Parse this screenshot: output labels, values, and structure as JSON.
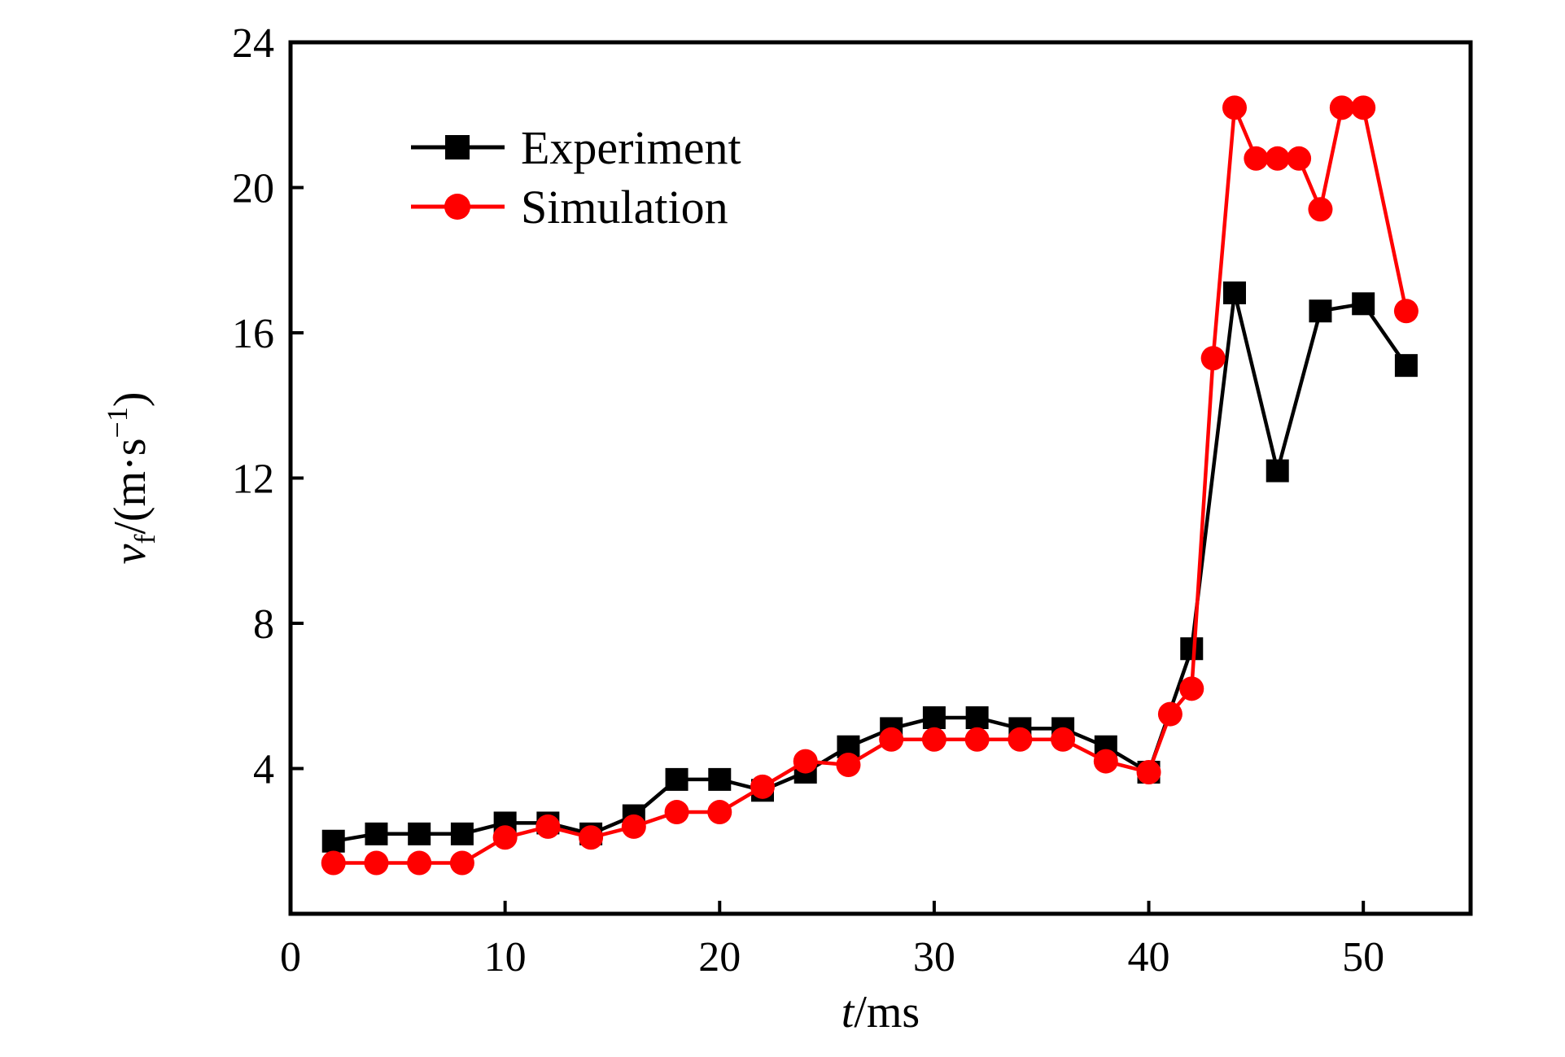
{
  "chart_data": {
    "type": "line",
    "title": "",
    "xlabel": "t/ms",
    "xlabel_parts": {
      "var": "t",
      "unit": "/ms"
    },
    "ylabel": "v_f/(m·s^-1)",
    "ylabel_parts": {
      "var": "v",
      "sub": "f",
      "unit_pre": "/(m·s",
      "sup": "−1",
      "unit_post": ")"
    },
    "xlim": [
      0,
      55
    ],
    "ylim": [
      0,
      24
    ],
    "xticks": [
      0,
      10,
      20,
      30,
      40,
      50
    ],
    "yticks": [
      4,
      8,
      12,
      16,
      20,
      24
    ],
    "grid": false,
    "legend_position": "top-left",
    "series": [
      {
        "name": "Experiment",
        "color": "#000000",
        "marker": "square",
        "x": [
          2,
          4,
          6,
          8,
          10,
          12,
          14,
          16,
          18,
          20,
          22,
          24,
          26,
          28,
          30,
          32,
          34,
          36,
          38,
          40,
          42,
          44,
          46,
          48,
          50,
          52
        ],
        "y": [
          2.0,
          2.2,
          2.2,
          2.2,
          2.5,
          2.5,
          2.2,
          2.7,
          3.7,
          3.7,
          3.4,
          3.9,
          4.6,
          5.1,
          5.4,
          5.4,
          5.1,
          5.1,
          4.6,
          3.9,
          7.3,
          17.1,
          12.2,
          16.6,
          16.8,
          15.1
        ]
      },
      {
        "name": "Simulation",
        "color": "#ff0000",
        "marker": "circle",
        "x": [
          2,
          4,
          6,
          8,
          10,
          12,
          14,
          16,
          18,
          20,
          22,
          24,
          26,
          28,
          30,
          32,
          34,
          36,
          38,
          40,
          41,
          42,
          43,
          44,
          45,
          46,
          47,
          48,
          49,
          50,
          52
        ],
        "y": [
          1.4,
          1.4,
          1.4,
          1.4,
          2.1,
          2.4,
          2.1,
          2.4,
          2.8,
          2.8,
          3.5,
          4.2,
          4.1,
          4.8,
          4.8,
          4.8,
          4.8,
          4.8,
          4.2,
          3.9,
          5.5,
          6.2,
          15.3,
          22.2,
          20.8,
          20.8,
          20.8,
          19.4,
          22.2,
          22.2,
          16.6
        ]
      }
    ]
  }
}
